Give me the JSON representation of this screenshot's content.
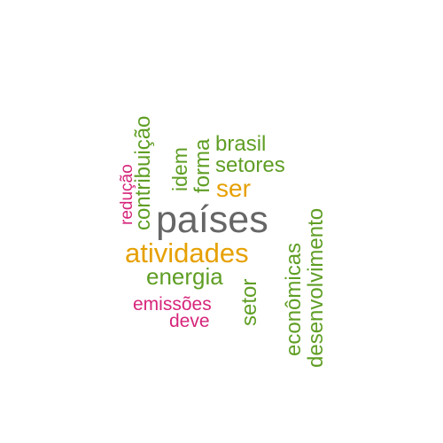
{
  "colors": {
    "green": "#5f9e24",
    "orange": "#e6a000",
    "gray": "#666666",
    "pink": "#d6257b"
  },
  "words": {
    "paises": "países",
    "atividades": "atividades",
    "ser": "ser",
    "energia": "energia",
    "brasil": "brasil",
    "setores": "setores",
    "emissoes": "emissões",
    "deve": "deve",
    "contribuicao": "contribuição",
    "reducao": "redução",
    "idem": "idem",
    "forma": "forma",
    "setor": "setor",
    "economicas": "econômicas",
    "desenvolvimento": "desenvolvimento"
  }
}
